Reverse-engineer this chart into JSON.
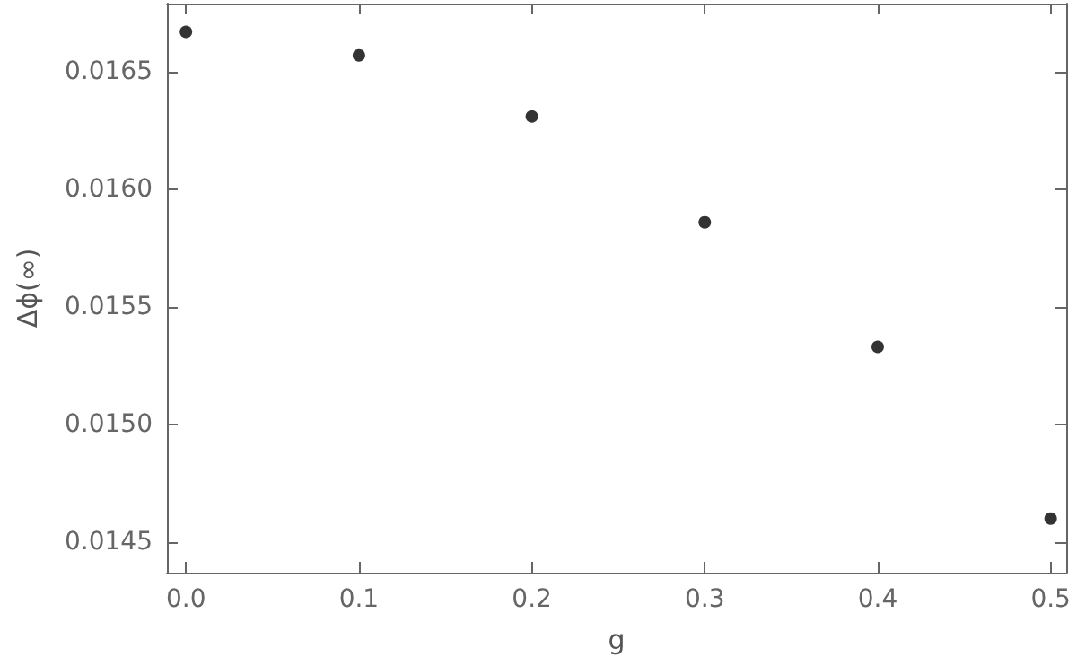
{
  "chart_data": {
    "type": "scatter",
    "xlabel": "g",
    "ylabel": "Δϕ(∞)",
    "x": [
      0,
      0.1,
      0.2,
      0.3,
      0.4,
      0.5
    ],
    "series": [
      {
        "color": "#000000",
        "values": [
          0.01667,
          0.01657,
          0.01631,
          0.01586,
          0.01533,
          0.0146
        ]
      }
    ],
    "xlim": [
      -0.011,
      0.509
    ],
    "ylim": [
      0.01437,
      0.01679
    ],
    "xticks": [
      {
        "value": 0,
        "label": "0.0"
      },
      {
        "value": 0.1,
        "label": "0.1"
      },
      {
        "value": 0.2,
        "label": "0.2"
      },
      {
        "value": 0.3,
        "label": "0.3"
      },
      {
        "value": 0.4,
        "label": "0.4"
      },
      {
        "value": 0.5,
        "label": "0.5"
      }
    ],
    "yticks": [
      {
        "value": 0.0145,
        "label": "0.0145"
      },
      {
        "value": 0.015,
        "label": "0.0150"
      },
      {
        "value": 0.0155,
        "label": "0.0155"
      },
      {
        "value": 0.016,
        "label": "0.0160"
      },
      {
        "value": 0.0165,
        "label": "0.0165"
      }
    ],
    "marker": "circle"
  }
}
